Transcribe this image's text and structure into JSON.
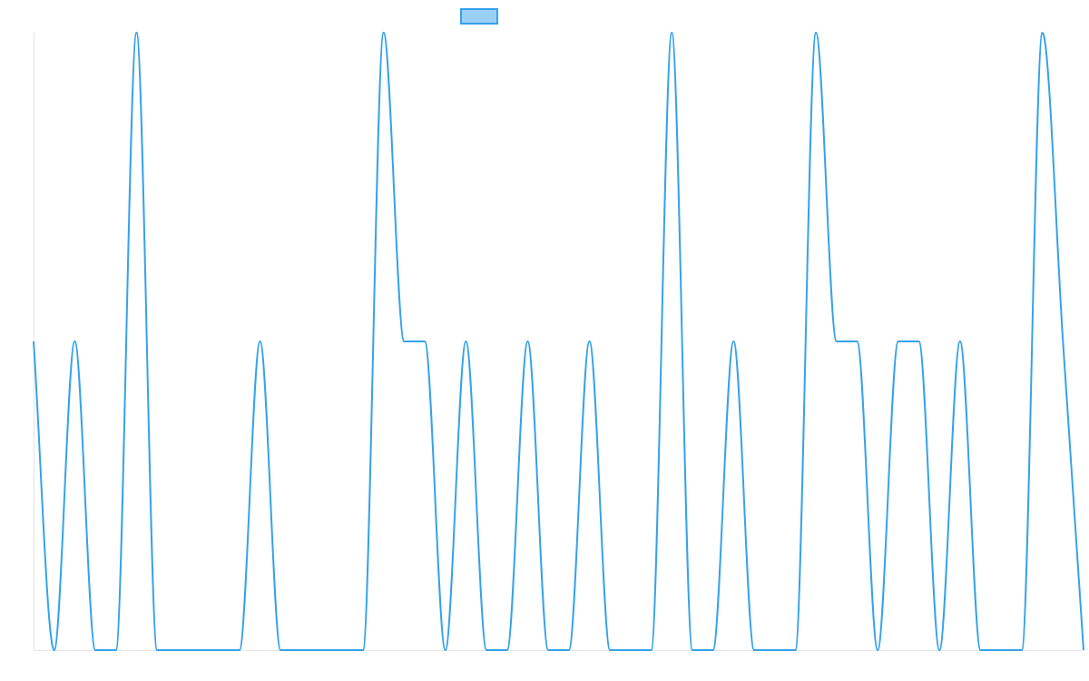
{
  "chart_data": {
    "type": "line",
    "title": "",
    "xlabel": "",
    "ylabel": "",
    "x": [
      0,
      1,
      2,
      3,
      4,
      5,
      6,
      7,
      8,
      9,
      10,
      11,
      12,
      13,
      14,
      15,
      16,
      17,
      18,
      19,
      20,
      21,
      22,
      23,
      24,
      25,
      26,
      27,
      28,
      29,
      30,
      31,
      32,
      33,
      34,
      35,
      36,
      37,
      38,
      39,
      40,
      41,
      42,
      43,
      44,
      45,
      46,
      47,
      48,
      49,
      50,
      51
    ],
    "series": [
      {
        "name": "",
        "color": "#36A2EB",
        "fill": "#9AD0F5",
        "values": [
          1,
          0,
          1,
          0,
          0,
          2,
          0,
          0,
          0,
          0,
          0,
          1,
          0,
          0,
          0,
          0,
          0,
          2,
          1,
          1,
          0,
          1,
          0,
          0,
          1,
          0,
          0,
          1,
          0,
          0,
          0,
          2,
          0,
          0,
          1,
          0,
          0,
          0,
          2,
          1,
          1,
          0,
          1,
          1,
          0,
          1,
          0,
          0,
          0,
          2,
          1,
          0
        ]
      }
    ],
    "ylim": [
      0,
      2
    ],
    "grid": false,
    "legend": {
      "position": "top",
      "entries": [
        {
          "label": "",
          "swatch_color": "#9AD0F5",
          "border_color": "#36A2EB"
        }
      ]
    },
    "interpolation": "monotone",
    "axes_visible": false
  }
}
